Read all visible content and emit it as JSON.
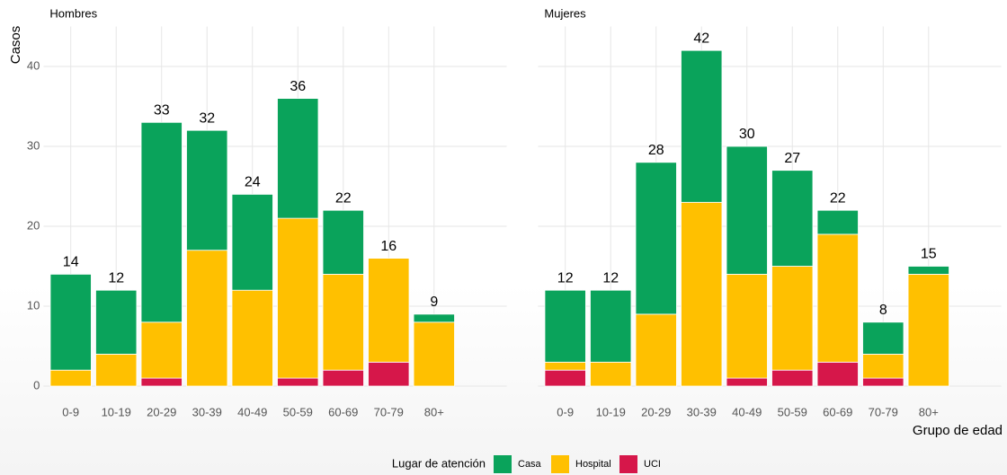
{
  "chart_data": [
    {
      "type": "bar",
      "stacked": true,
      "title": "Hombres",
      "y_label": "Casos",
      "categories": [
        "0-9",
        "10-19",
        "20-29",
        "30-39",
        "40-49",
        "50-59",
        "60-69",
        "70-79",
        "80+"
      ],
      "series": [
        {
          "name": "Casa",
          "color": "#0aa35b",
          "values": [
            12,
            8,
            25,
            15,
            12,
            15,
            8,
            0,
            1
          ]
        },
        {
          "name": "Hospital",
          "color": "#ffc000",
          "values": [
            2,
            4,
            7,
            17,
            12,
            20,
            12,
            13,
            8
          ]
        },
        {
          "name": "UCI",
          "color": "#d6174a",
          "values": [
            0,
            0,
            1,
            0,
            0,
            1,
            2,
            3,
            0
          ]
        }
      ],
      "totals": [
        14,
        12,
        33,
        32,
        24,
        36,
        22,
        16,
        9
      ],
      "ylim": [
        0,
        45
      ],
      "yticks": [
        0,
        10,
        20,
        30,
        40
      ],
      "grid": true
    },
    {
      "type": "bar",
      "stacked": true,
      "title": "Mujeres",
      "x_label": "Grupo de edad",
      "categories": [
        "0-9",
        "10-19",
        "20-29",
        "30-39",
        "40-49",
        "50-59",
        "60-69",
        "70-79",
        "80+"
      ],
      "series": [
        {
          "name": "Casa",
          "color": "#0aa35b",
          "values": [
            9,
            9,
            19,
            19,
            16,
            12,
            3,
            4,
            1
          ]
        },
        {
          "name": "Hospital",
          "color": "#ffc000",
          "values": [
            1,
            3,
            9,
            23,
            13,
            13,
            16,
            3,
            14
          ]
        },
        {
          "name": "UCI",
          "color": "#d6174a",
          "values": [
            2,
            0,
            0,
            0,
            1,
            2,
            3,
            1,
            0
          ]
        }
      ],
      "totals": [
        12,
        12,
        28,
        42,
        30,
        27,
        22,
        8,
        15
      ],
      "ylim": [
        0,
        45
      ],
      "yticks": [
        0,
        10,
        20,
        30,
        40
      ],
      "grid": true
    }
  ],
  "legend_title": "Lugar de atención"
}
